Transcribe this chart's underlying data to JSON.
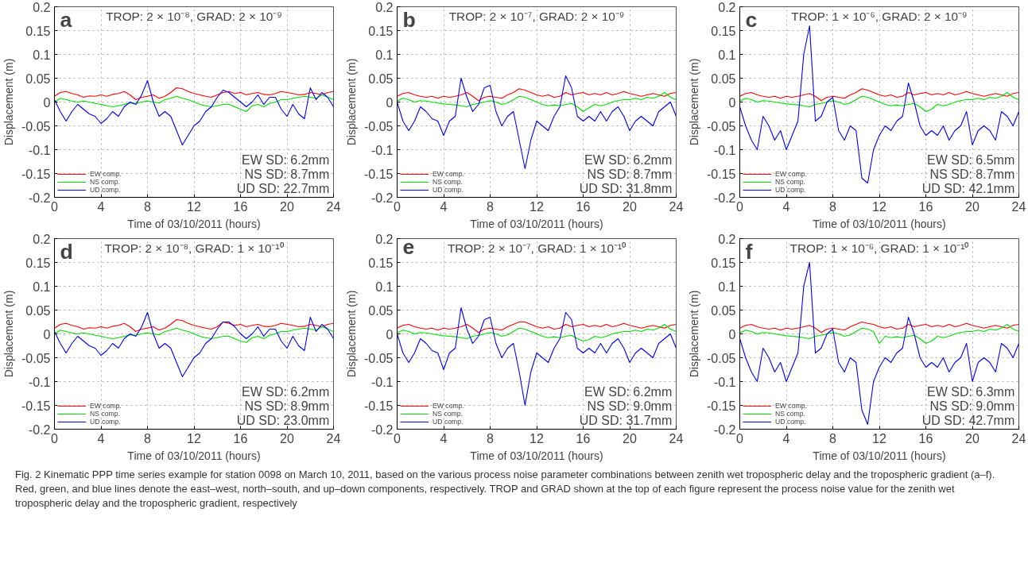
{
  "chart_data": [
    {
      "type": "line",
      "title": "a",
      "subtitle": "TROP: 2 × 10⁻⁸, GRAD: 2 × 10⁻⁹",
      "xlabel": "Time of 03/10/2011 (hours)",
      "ylabel": "Displacement (m)",
      "xlim": [
        0,
        24
      ],
      "ylim": [
        -0.2,
        0.2
      ],
      "xticks": [
        0,
        4,
        8,
        12,
        16,
        20,
        24
      ],
      "yticks": [
        -0.2,
        -0.15,
        -0.1,
        -0.05,
        0,
        0.05,
        0.1,
        0.15,
        0.2
      ],
      "grid": true,
      "legend": "bottom left",
      "annotations": [
        "EW SD: 6.2mm",
        "NS SD: 8.7mm",
        "UD SD: 22.7mm"
      ],
      "x": [
        0,
        0.5,
        1,
        1.5,
        2,
        2.5,
        3,
        3.5,
        4,
        4.5,
        5,
        5.5,
        6,
        6.5,
        7,
        7.5,
        8,
        8.5,
        9,
        9.5,
        10,
        10.5,
        11,
        11.5,
        12,
        12.5,
        13,
        13.5,
        14,
        14.5,
        15,
        15.5,
        16,
        16.5,
        17,
        17.5,
        18,
        18.5,
        19,
        19.5,
        20,
        20.5,
        21,
        21.5,
        22,
        22.5,
        23,
        23.5,
        24
      ],
      "series": [
        {
          "name": "EW comp.",
          "color": "#ff0000",
          "values": [
            0.012,
            0.02,
            0.022,
            0.018,
            0.015,
            0.01,
            0.013,
            0.012,
            0.015,
            0.012,
            0.016,
            0.018,
            0.022,
            0.015,
            0.005,
            0.01,
            0.012,
            0.015,
            0.008,
            0.012,
            0.02,
            0.03,
            0.028,
            0.022,
            0.018,
            0.015,
            0.012,
            0.01,
            0.015,
            0.02,
            0.022,
            0.018,
            0.02,
            0.015,
            0.018,
            0.02,
            0.016,
            0.015,
            0.018,
            0.022,
            0.02,
            0.018,
            0.015,
            0.016,
            0.02,
            0.018,
            0.015,
            0.02,
            0.022
          ]
        },
        {
          "name": "NS comp.",
          "color": "#00dd00",
          "values": [
            0.0,
            0.008,
            0.005,
            0.002,
            0.0,
            0.002,
            0.0,
            -0.003,
            -0.005,
            -0.008,
            -0.01,
            -0.008,
            -0.005,
            -0.002,
            -0.003,
            0.0,
            0.002,
            0.0,
            -0.002,
            0.005,
            0.008,
            0.012,
            0.008,
            0.005,
            0.0,
            -0.005,
            -0.008,
            -0.01,
            -0.008,
            -0.005,
            -0.005,
            -0.01,
            -0.015,
            -0.02,
            -0.008,
            -0.005,
            -0.01,
            -0.003,
            0.0,
            0.005,
            0.005,
            0.008,
            0.01,
            0.012,
            0.01,
            0.008,
            0.015,
            0.01,
            0.005
          ]
        },
        {
          "name": "UD comp.",
          "color": "#0000ff",
          "values": [
            0.005,
            -0.02,
            -0.04,
            -0.02,
            -0.005,
            -0.015,
            -0.025,
            -0.03,
            -0.045,
            -0.035,
            -0.02,
            -0.03,
            -0.01,
            0.0,
            -0.005,
            0.015,
            0.045,
            0.0,
            -0.03,
            -0.02,
            -0.03,
            -0.06,
            -0.09,
            -0.07,
            -0.05,
            -0.04,
            -0.02,
            -0.01,
            0.01,
            0.025,
            0.02,
            0.01,
            0.0,
            -0.01,
            0.0,
            0.015,
            -0.005,
            0.01,
            0.01,
            -0.015,
            -0.03,
            -0.005,
            -0.025,
            -0.035,
            0.03,
            0.005,
            0.02,
            0.01,
            -0.01
          ]
        }
      ]
    },
    {
      "type": "line",
      "title": "b",
      "subtitle": "TROP: 2 × 10⁻⁷, GRAD: 2 × 10⁻⁹",
      "xlabel": "Time of 03/10/2011 (hours)",
      "ylabel": "Displacement (m)",
      "xlim": [
        0,
        24
      ],
      "ylim": [
        -0.2,
        0.2
      ],
      "xticks": [
        0,
        4,
        8,
        12,
        16,
        20,
        24
      ],
      "yticks": [
        -0.2,
        -0.15,
        -0.1,
        -0.05,
        0,
        0.05,
        0.1,
        0.15,
        0.2
      ],
      "grid": true,
      "legend": "bottom left",
      "annotations": [
        "EW SD: 6.2mm",
        "NS SD: 8.7mm",
        "UD SD: 31.8mm"
      ],
      "x": [
        0,
        0.5,
        1,
        1.5,
        2,
        2.5,
        3,
        3.5,
        4,
        4.5,
        5,
        5.5,
        6,
        6.5,
        7,
        7.5,
        8,
        8.5,
        9,
        9.5,
        10,
        10.5,
        11,
        11.5,
        12,
        12.5,
        13,
        13.5,
        14,
        14.5,
        15,
        15.5,
        16,
        16.5,
        17,
        17.5,
        18,
        18.5,
        19,
        19.5,
        20,
        20.5,
        21,
        21.5,
        22,
        22.5,
        23,
        23.5,
        24
      ],
      "series": [
        {
          "name": "EW comp.",
          "color": "#ff0000",
          "values": [
            0.012,
            0.018,
            0.02,
            0.015,
            0.012,
            0.01,
            0.012,
            0.008,
            0.012,
            0.01,
            0.012,
            0.015,
            0.02,
            0.012,
            0.003,
            0.01,
            0.012,
            0.01,
            0.008,
            0.015,
            0.02,
            0.028,
            0.025,
            0.02,
            0.015,
            0.012,
            0.015,
            0.01,
            0.012,
            0.02,
            0.015,
            0.018,
            0.02,
            0.015,
            0.018,
            0.015,
            0.02,
            0.015,
            0.018,
            0.022,
            0.018,
            0.015,
            0.012,
            0.015,
            0.018,
            0.015,
            0.012,
            0.018,
            0.02
          ]
        },
        {
          "name": "NS comp.",
          "color": "#00dd00",
          "values": [
            0.002,
            0.008,
            0.005,
            0.0,
            0.003,
            0.002,
            0.0,
            -0.002,
            -0.004,
            -0.005,
            -0.006,
            -0.008,
            -0.01,
            -0.005,
            -0.003,
            0.0,
            0.003,
            0.0,
            -0.005,
            -0.002,
            0.005,
            0.012,
            0.01,
            0.005,
            0.0,
            -0.005,
            -0.008,
            -0.006,
            -0.008,
            -0.005,
            -0.003,
            -0.01,
            -0.02,
            -0.012,
            -0.005,
            -0.008,
            -0.005,
            0.0,
            0.003,
            0.005,
            0.005,
            0.008,
            0.005,
            0.01,
            0.008,
            0.012,
            0.02,
            0.01,
            0.005
          ]
        },
        {
          "name": "UD comp.",
          "color": "#0000ff",
          "values": [
            0.0,
            -0.04,
            -0.06,
            -0.04,
            -0.01,
            -0.02,
            -0.035,
            -0.04,
            -0.07,
            -0.04,
            -0.03,
            0.05,
            0.01,
            -0.02,
            -0.005,
            0.03,
            0.035,
            -0.02,
            -0.05,
            -0.03,
            -0.02,
            -0.08,
            -0.14,
            -0.08,
            -0.04,
            -0.05,
            -0.06,
            -0.03,
            -0.01,
            0.055,
            0.03,
            -0.03,
            -0.04,
            -0.03,
            -0.04,
            -0.02,
            -0.04,
            -0.02,
            -0.01,
            -0.03,
            -0.06,
            -0.04,
            -0.03,
            -0.04,
            -0.05,
            -0.02,
            -0.01,
            0.0,
            -0.03
          ]
        }
      ]
    },
    {
      "type": "line",
      "title": "c",
      "subtitle": "TROP: 1 × 10⁻⁶, GRAD: 2 × 10⁻⁹",
      "xlabel": "Time of 03/10/2011 (hours)",
      "ylabel": "Displacement (m)",
      "xlim": [
        0,
        24
      ],
      "ylim": [
        -0.2,
        0.2
      ],
      "xticks": [
        0,
        4,
        8,
        12,
        16,
        20,
        24
      ],
      "yticks": [
        -0.2,
        -0.15,
        -0.1,
        -0.05,
        0,
        0.05,
        0.1,
        0.15,
        0.2
      ],
      "grid": true,
      "legend": "bottom left",
      "annotations": [
        "EW SD: 6.5mm",
        "NS SD: 8.7mm",
        "UD SD: 42.1mm"
      ],
      "x": [
        0,
        0.5,
        1,
        1.5,
        2,
        2.5,
        3,
        3.5,
        4,
        4.5,
        5,
        5.5,
        6,
        6.5,
        7,
        7.5,
        8,
        8.5,
        9,
        9.5,
        10,
        10.5,
        11,
        11.5,
        12,
        12.5,
        13,
        13.5,
        14,
        14.5,
        15,
        15.5,
        16,
        16.5,
        17,
        17.5,
        18,
        18.5,
        19,
        19.5,
        20,
        20.5,
        21,
        21.5,
        22,
        22.5,
        23,
        23.5,
        24
      ],
      "series": [
        {
          "name": "EW comp.",
          "color": "#ff0000",
          "values": [
            0.012,
            0.018,
            0.02,
            0.015,
            0.012,
            0.01,
            0.012,
            0.008,
            0.012,
            0.01,
            0.012,
            0.015,
            0.018,
            0.012,
            0.003,
            0.01,
            0.012,
            0.01,
            0.008,
            0.015,
            0.02,
            0.028,
            0.025,
            0.02,
            0.015,
            0.012,
            0.015,
            0.01,
            0.012,
            0.02,
            0.015,
            0.018,
            0.02,
            0.015,
            0.018,
            0.015,
            0.02,
            0.015,
            0.018,
            0.022,
            0.018,
            0.015,
            0.012,
            0.015,
            0.018,
            0.015,
            0.012,
            0.018,
            0.02
          ]
        },
        {
          "name": "NS comp.",
          "color": "#00dd00",
          "values": [
            0.002,
            0.008,
            0.005,
            0.0,
            0.003,
            0.002,
            0.0,
            -0.002,
            -0.004,
            -0.005,
            -0.006,
            -0.008,
            -0.01,
            -0.005,
            -0.003,
            0.0,
            0.003,
            0.0,
            -0.005,
            -0.002,
            0.005,
            0.012,
            0.01,
            0.005,
            0.0,
            -0.005,
            -0.008,
            -0.006,
            -0.008,
            -0.005,
            -0.003,
            -0.01,
            -0.02,
            -0.015,
            -0.005,
            -0.008,
            -0.005,
            0.0,
            0.003,
            0.005,
            0.005,
            0.008,
            0.005,
            0.01,
            0.008,
            0.012,
            0.02,
            0.01,
            0.005
          ]
        },
        {
          "name": "UD comp.",
          "color": "#0000ff",
          "values": [
            -0.01,
            -0.05,
            -0.08,
            -0.1,
            -0.03,
            -0.05,
            -0.08,
            -0.06,
            -0.1,
            -0.07,
            -0.04,
            0.1,
            0.16,
            -0.04,
            -0.03,
            0.0,
            0.01,
            -0.06,
            -0.08,
            -0.05,
            -0.06,
            -0.16,
            -0.17,
            -0.1,
            -0.07,
            -0.05,
            -0.06,
            -0.04,
            -0.03,
            0.04,
            0.0,
            -0.05,
            -0.07,
            -0.06,
            -0.07,
            -0.05,
            -0.08,
            -0.06,
            -0.05,
            -0.02,
            -0.09,
            -0.06,
            -0.05,
            -0.06,
            -0.08,
            -0.02,
            -0.03,
            -0.05,
            -0.02
          ]
        }
      ]
    },
    {
      "type": "line",
      "title": "d",
      "subtitle": "TROP: 2 × 10⁻⁸, GRAD: 1 × 10⁻¹⁰",
      "xlabel": "Time of 03/10/2011 (hours)",
      "ylabel": "Displacement (m)",
      "xlim": [
        0,
        24
      ],
      "ylim": [
        -0.2,
        0.2
      ],
      "xticks": [
        0,
        4,
        8,
        12,
        16,
        20,
        24
      ],
      "yticks": [
        -0.2,
        -0.15,
        -0.1,
        -0.05,
        0,
        0.05,
        0.1,
        0.15,
        0.2
      ],
      "grid": true,
      "legend": "bottom left",
      "annotations": [
        "EW SD: 6.2mm",
        "NS SD: 8.9mm",
        "UD SD: 23.0mm"
      ],
      "x": [
        0,
        0.5,
        1,
        1.5,
        2,
        2.5,
        3,
        3.5,
        4,
        4.5,
        5,
        5.5,
        6,
        6.5,
        7,
        7.5,
        8,
        8.5,
        9,
        9.5,
        10,
        10.5,
        11,
        11.5,
        12,
        12.5,
        13,
        13.5,
        14,
        14.5,
        15,
        15.5,
        16,
        16.5,
        17,
        17.5,
        18,
        18.5,
        19,
        19.5,
        20,
        20.5,
        21,
        21.5,
        22,
        22.5,
        23,
        23.5,
        24
      ],
      "series": [
        {
          "name": "EW comp.",
          "color": "#ff0000",
          "values": [
            0.012,
            0.02,
            0.022,
            0.018,
            0.015,
            0.01,
            0.013,
            0.012,
            0.015,
            0.012,
            0.016,
            0.018,
            0.022,
            0.015,
            0.005,
            0.01,
            0.012,
            0.015,
            0.008,
            0.012,
            0.02,
            0.03,
            0.028,
            0.022,
            0.018,
            0.015,
            0.012,
            0.01,
            0.015,
            0.025,
            0.022,
            0.018,
            0.02,
            0.015,
            0.018,
            0.02,
            0.016,
            0.015,
            0.018,
            0.022,
            0.02,
            0.018,
            0.015,
            0.016,
            0.02,
            0.018,
            0.015,
            0.02,
            0.022
          ]
        },
        {
          "name": "NS comp.",
          "color": "#00dd00",
          "values": [
            0.0,
            0.008,
            0.005,
            0.002,
            0.0,
            0.002,
            0.0,
            -0.003,
            -0.005,
            -0.008,
            -0.01,
            -0.008,
            -0.005,
            -0.002,
            -0.003,
            0.0,
            0.002,
            0.0,
            -0.002,
            0.005,
            0.008,
            0.012,
            0.008,
            0.005,
            0.0,
            -0.005,
            -0.008,
            -0.01,
            -0.008,
            -0.005,
            -0.005,
            -0.01,
            -0.015,
            -0.018,
            -0.008,
            -0.005,
            -0.01,
            -0.003,
            0.0,
            0.005,
            0.005,
            0.008,
            0.01,
            0.012,
            0.01,
            0.008,
            0.015,
            0.01,
            0.005
          ]
        },
        {
          "name": "UD comp.",
          "color": "#0000ff",
          "values": [
            0.005,
            -0.02,
            -0.04,
            -0.02,
            -0.005,
            -0.015,
            -0.025,
            -0.03,
            -0.045,
            -0.035,
            -0.02,
            -0.03,
            -0.01,
            0.0,
            -0.005,
            0.015,
            0.045,
            0.0,
            -0.03,
            -0.02,
            -0.03,
            -0.06,
            -0.09,
            -0.07,
            -0.05,
            -0.04,
            -0.02,
            -0.01,
            0.01,
            0.025,
            0.025,
            0.015,
            0.0,
            -0.01,
            0.0,
            0.015,
            -0.005,
            0.01,
            0.01,
            -0.015,
            -0.03,
            -0.005,
            -0.025,
            -0.035,
            0.035,
            0.005,
            0.02,
            0.01,
            -0.01
          ]
        }
      ]
    },
    {
      "type": "line",
      "title": "e",
      "subtitle": "TROP: 2 × 10⁻⁷, GRAD: 1 × 10⁻¹⁰",
      "xlabel": "Time of 03/10/2011 (hours)",
      "ylabel": "Displacement (m)",
      "xlim": [
        0,
        24
      ],
      "ylim": [
        -0.2,
        0.2
      ],
      "xticks": [
        0,
        4,
        8,
        12,
        16,
        20,
        24
      ],
      "yticks": [
        -0.2,
        -0.15,
        -0.1,
        -0.05,
        0,
        0.05,
        0.1,
        0.15,
        0.2
      ],
      "grid": true,
      "legend": "bottom left",
      "annotations": [
        "EW SD: 6.2mm",
        "NS SD: 9.0mm",
        "UD SD: 31.7mm"
      ],
      "x": [
        0,
        0.5,
        1,
        1.5,
        2,
        2.5,
        3,
        3.5,
        4,
        4.5,
        5,
        5.5,
        6,
        6.5,
        7,
        7.5,
        8,
        8.5,
        9,
        9.5,
        10,
        10.5,
        11,
        11.5,
        12,
        12.5,
        13,
        13.5,
        14,
        14.5,
        15,
        15.5,
        16,
        16.5,
        17,
        17.5,
        18,
        18.5,
        19,
        19.5,
        20,
        20.5,
        21,
        21.5,
        22,
        22.5,
        23,
        23.5,
        24
      ],
      "series": [
        {
          "name": "EW comp.",
          "color": "#ff0000",
          "values": [
            0.012,
            0.018,
            0.02,
            0.015,
            0.012,
            0.01,
            0.012,
            0.008,
            0.012,
            0.01,
            0.012,
            0.015,
            0.02,
            0.012,
            0.003,
            0.01,
            0.012,
            0.01,
            0.008,
            0.015,
            0.02,
            0.025,
            0.025,
            0.02,
            0.015,
            0.012,
            0.015,
            0.01,
            0.012,
            0.02,
            0.015,
            0.018,
            0.02,
            0.015,
            0.018,
            0.015,
            0.02,
            0.015,
            0.018,
            0.022,
            0.018,
            0.015,
            0.012,
            0.015,
            0.018,
            0.015,
            0.012,
            0.018,
            0.02
          ]
        },
        {
          "name": "NS comp.",
          "color": "#00dd00",
          "values": [
            0.002,
            0.008,
            0.005,
            0.0,
            0.003,
            0.002,
            0.0,
            -0.002,
            -0.004,
            -0.005,
            -0.006,
            -0.008,
            -0.01,
            -0.005,
            -0.003,
            0.0,
            0.003,
            0.0,
            -0.005,
            -0.002,
            0.005,
            0.012,
            0.01,
            0.005,
            0.0,
            -0.005,
            -0.008,
            -0.006,
            -0.008,
            -0.005,
            -0.003,
            -0.01,
            -0.015,
            -0.012,
            -0.005,
            -0.008,
            -0.005,
            0.0,
            0.003,
            0.005,
            0.005,
            0.008,
            0.005,
            0.01,
            0.008,
            0.012,
            0.02,
            0.01,
            0.005
          ]
        },
        {
          "name": "UD comp.",
          "color": "#0000ff",
          "values": [
            0.0,
            -0.04,
            -0.06,
            -0.04,
            -0.01,
            -0.02,
            -0.035,
            -0.04,
            -0.075,
            -0.04,
            -0.03,
            0.055,
            0.01,
            -0.02,
            -0.005,
            0.03,
            0.035,
            -0.02,
            -0.05,
            -0.03,
            -0.02,
            -0.08,
            -0.15,
            -0.08,
            -0.04,
            -0.05,
            -0.06,
            -0.03,
            -0.01,
            0.045,
            0.03,
            -0.03,
            -0.04,
            -0.03,
            -0.04,
            -0.02,
            -0.04,
            -0.02,
            -0.01,
            -0.03,
            -0.06,
            -0.04,
            -0.03,
            -0.04,
            -0.05,
            -0.02,
            -0.01,
            0.0,
            -0.03
          ]
        }
      ]
    },
    {
      "type": "line",
      "title": "f",
      "subtitle": "TROP: 1 × 10⁻⁶, GRAD: 1 × 10⁻¹⁰",
      "xlabel": "Time of 03/10/2011 (hours)",
      "ylabel": "Displacement (m)",
      "xlim": [
        0,
        24
      ],
      "ylim": [
        -0.2,
        0.2
      ],
      "xticks": [
        0,
        4,
        8,
        12,
        16,
        20,
        24
      ],
      "yticks": [
        -0.2,
        -0.15,
        -0.1,
        -0.05,
        0,
        0.05,
        0.1,
        0.15,
        0.2
      ],
      "grid": true,
      "legend": "bottom left",
      "annotations": [
        "EW SD: 6.3mm",
        "NS SD: 9.0mm",
        "UD SD: 42.7mm",
        "Fig. 2  Kinematic PPP time series example for station 0098 on March 10, 2011, based on the various process noise parameter combinations between zenith wet tropospheric delay and the tropospheric gradient (a–f). Red, green, and blue lines denote the east–west, north–south, and up–down components, respectively. TROP and GRAD shown at the top of each figure represent the process noise value for the zenith wet tropospheric delay and the tropospheric gradient, respectively"
      ],
      "x": [
        0,
        0.5,
        1,
        1.5,
        2,
        2.5,
        3,
        3.5,
        4,
        4.5,
        5,
        5.5,
        6,
        6.5,
        7,
        7.5,
        8,
        8.5,
        9,
        9.5,
        10,
        10.5,
        11,
        11.5,
        12,
        12.5,
        13,
        13.5,
        14,
        14.5,
        15,
        15.5,
        16,
        16.5,
        17,
        17.5,
        18,
        18.5,
        19,
        19.5,
        20,
        20.5,
        21,
        21.5,
        22,
        22.5,
        23,
        23.5,
        24
      ],
      "series": [
        {
          "name": "EW comp.",
          "color": "#ff0000",
          "values": [
            0.012,
            0.018,
            0.02,
            0.015,
            0.012,
            0.01,
            0.012,
            0.008,
            0.012,
            0.01,
            0.012,
            0.015,
            0.018,
            0.012,
            0.003,
            0.01,
            0.012,
            0.01,
            0.008,
            0.015,
            0.02,
            0.025,
            0.022,
            0.02,
            0.015,
            0.012,
            0.015,
            0.01,
            0.012,
            0.02,
            0.015,
            0.018,
            0.02,
            0.015,
            0.018,
            0.015,
            0.02,
            0.015,
            0.018,
            0.022,
            0.018,
            0.015,
            0.012,
            0.015,
            0.018,
            0.015,
            0.012,
            0.018,
            0.02
          ]
        },
        {
          "name": "NS comp.",
          "color": "#00dd00",
          "values": [
            0.002,
            0.008,
            0.005,
            0.0,
            0.003,
            0.002,
            0.0,
            -0.002,
            -0.004,
            -0.005,
            -0.006,
            -0.008,
            -0.01,
            -0.005,
            -0.003,
            0.0,
            0.003,
            0.0,
            -0.005,
            -0.002,
            0.005,
            0.012,
            0.01,
            0.005,
            -0.02,
            -0.005,
            -0.008,
            -0.006,
            -0.008,
            -0.005,
            -0.003,
            -0.01,
            -0.02,
            -0.015,
            -0.005,
            -0.008,
            -0.005,
            0.0,
            0.003,
            0.005,
            0.005,
            0.008,
            0.005,
            0.01,
            0.008,
            0.012,
            0.02,
            0.01,
            0.005
          ]
        },
        {
          "name": "UD comp.",
          "color": "#0000ff",
          "values": [
            -0.01,
            -0.05,
            -0.08,
            -0.1,
            -0.03,
            -0.05,
            -0.08,
            -0.06,
            -0.1,
            -0.07,
            -0.04,
            0.1,
            0.15,
            -0.04,
            -0.03,
            0.0,
            0.01,
            -0.06,
            -0.08,
            -0.05,
            -0.06,
            -0.16,
            -0.19,
            -0.1,
            -0.07,
            -0.05,
            -0.06,
            -0.04,
            -0.03,
            0.035,
            0.0,
            -0.05,
            -0.07,
            -0.06,
            -0.07,
            -0.05,
            -0.08,
            -0.06,
            -0.05,
            -0.02,
            -0.1,
            -0.06,
            -0.05,
            -0.06,
            -0.08,
            -0.02,
            -0.03,
            -0.05,
            -0.02
          ]
        }
      ]
    }
  ]
}
